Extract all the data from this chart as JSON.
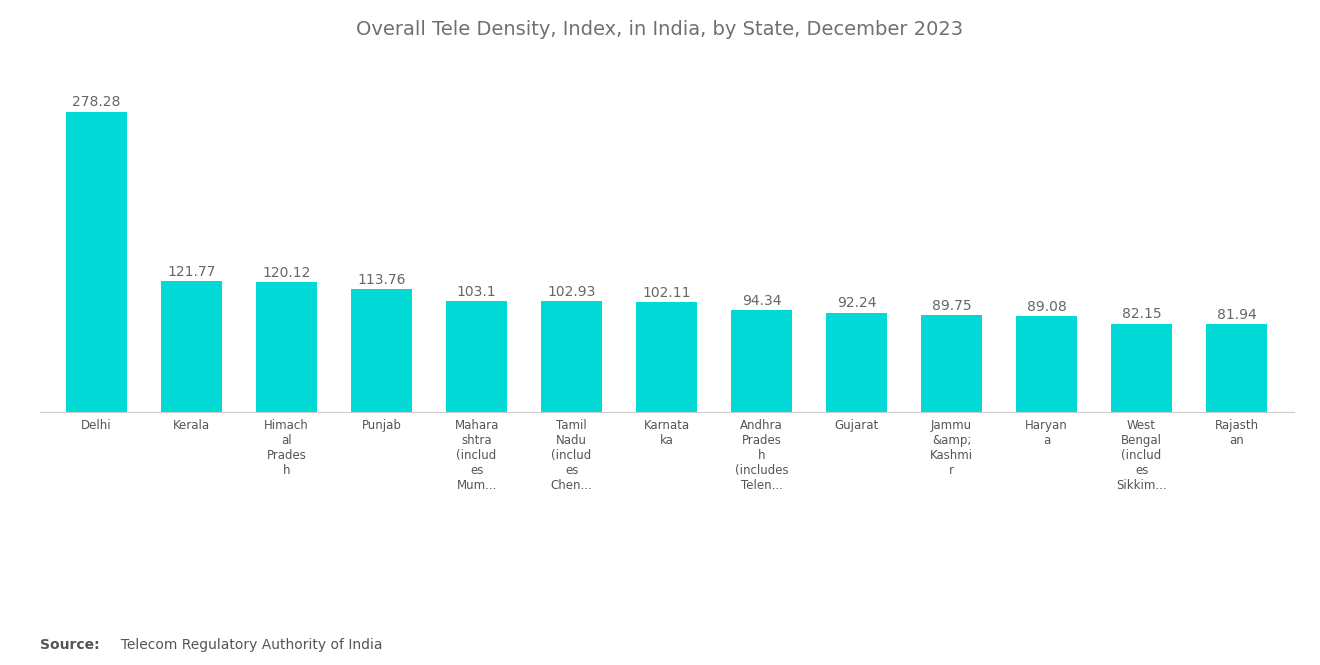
{
  "title": "Overall Tele Density, Index, in India, by State, December 2023",
  "title_color": "#707070",
  "title_fontsize": 14,
  "categories": [
    "Delhi",
    "Kerala",
    "Himach\nal\nPrades\nh",
    "Punjab",
    "Mahara\nshtra\n(includ\nes\nMum...",
    "Tamil\nNadu\n(includ\nes\nChen...",
    "Karnata\nka",
    "Andhra\nPrades\nh\n(includes\nTelen...",
    "Gujarat",
    "Jammu\n&amp;\nKashmi\nr",
    "Haryan\na",
    "West\nBengal\n(includ\nes\nSikkim...",
    "Rajasth\nan"
  ],
  "values": [
    278.28,
    121.77,
    120.12,
    113.76,
    103.1,
    102.93,
    102.11,
    94.34,
    92.24,
    89.75,
    89.08,
    82.15,
    81.94
  ],
  "bar_color": "#00D9D5",
  "value_color": "#666666",
  "value_fontsize": 10,
  "source_label_bold": "Source:",
  "source_label_rest": "  Telecom Regulatory Authority of India",
  "source_fontsize": 10,
  "background_color": "#ffffff",
  "bar_width": 0.65,
  "ylim_max": 320
}
